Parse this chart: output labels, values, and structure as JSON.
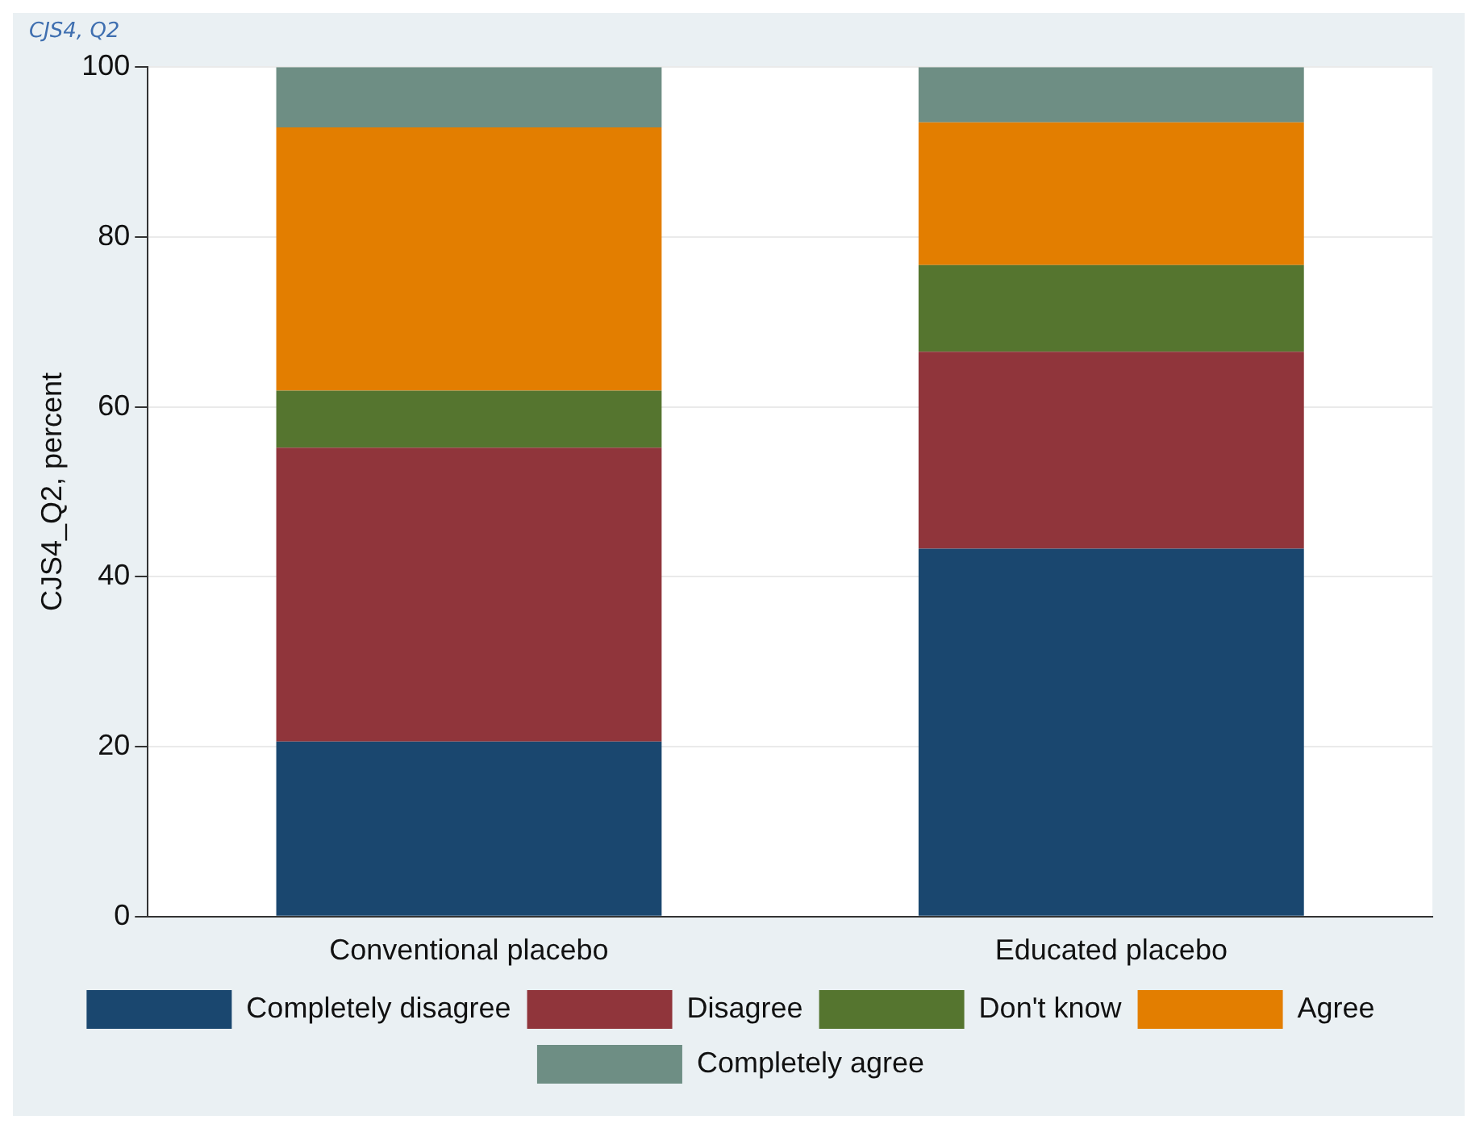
{
  "chart_data": {
    "type": "bar",
    "title": "CJS4, Q2",
    "ylabel": "CJS4_Q2, percent",
    "categories": [
      "Conventional placebo",
      "Educated placebo"
    ],
    "stacked": true,
    "series": [
      {
        "name": "Completely disagree",
        "color": "#1a476f",
        "values": [
          20.6,
          43.3
        ]
      },
      {
        "name": "Disagree",
        "color": "#90353b",
        "values": [
          34.6,
          23.2
        ]
      },
      {
        "name": "Don't know",
        "color": "#55752f",
        "values": [
          6.7,
          10.2
        ]
      },
      {
        "name": "Agree",
        "color": "#e37e00",
        "values": [
          31.0,
          16.8
        ]
      },
      {
        "name": "Completely agree",
        "color": "#6e8e84",
        "values": [
          7.1,
          6.5
        ]
      }
    ],
    "ylim": [
      0,
      100
    ],
    "yticks": [
      0,
      20,
      40,
      60,
      80,
      100
    ],
    "grid": "y",
    "legend": "bottom"
  }
}
